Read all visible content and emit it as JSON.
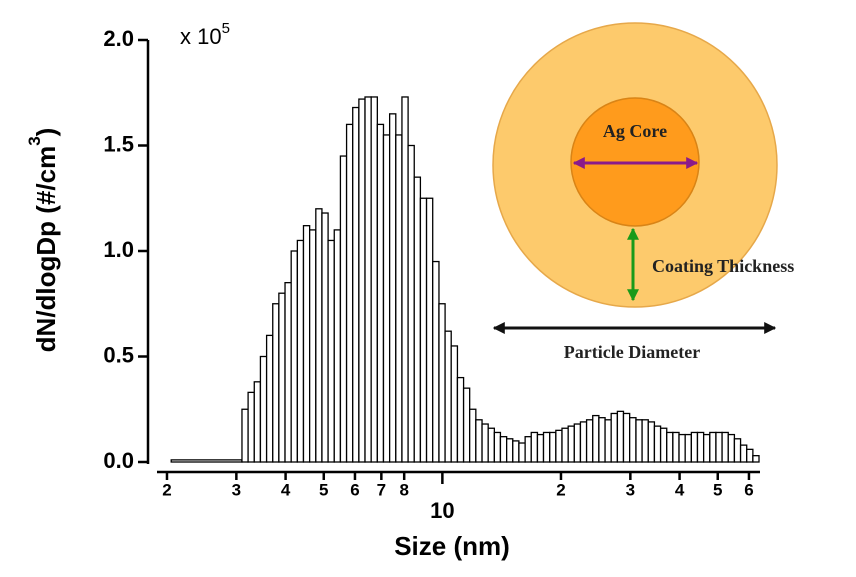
{
  "chart_data": {
    "type": "histogram",
    "xlabel": "Size (nm)",
    "ylabel": "dN/dlogDp (#/cm",
    "ylabel_superscript": "3",
    "ylabel_end": ")",
    "y_multiplier": "x 10",
    "y_multiplier_exponent": "5",
    "x_log_scale": true,
    "xlim": [
      1.79,
      64
    ],
    "xticks": [
      2,
      3,
      4,
      5,
      6,
      7,
      8,
      10,
      {
        "value": 20,
        "label": "2"
      },
      {
        "value": 30,
        "label": "3"
      },
      {
        "value": 40,
        "label": "4"
      },
      {
        "value": 50,
        "label": "5"
      },
      {
        "value": 60,
        "label": "6"
      }
    ],
    "ylim": [
      0,
      2
    ],
    "yticks": [
      {
        "value": 0,
        "label": "0.0"
      },
      0.5,
      {
        "value": 1,
        "label": "1.0"
      },
      1.5,
      {
        "value": 2,
        "label": "2.0"
      }
    ],
    "bar_fill": "#ffffff",
    "bar_edge": "#000000",
    "bins": [
      2.05,
      3.1,
      3.213,
      3.331,
      3.453,
      3.58,
      3.711,
      3.846,
      3.987,
      4.133,
      4.285,
      4.441,
      4.604,
      4.773,
      4.947,
      5.128,
      5.316,
      5.511,
      5.713,
      5.922,
      6.139,
      6.363,
      6.596,
      6.838,
      7.088,
      7.348,
      7.617,
      7.896,
      8.185,
      8.484,
      8.795,
      9.117,
      9.451,
      9.803,
      10.16,
      10.53,
      10.92,
      11.32,
      11.73,
      12.16,
      12.61,
      13.07,
      13.55,
      14.04,
      14.56,
      15.09,
      15.64,
      16.22,
      16.81,
      17.43,
      18.06,
      18.73,
      19.41,
      20.12,
      20.86,
      21.62,
      22.41,
      23.23,
      24.08,
      24.96,
      25.88,
      26.82,
      27.81,
      28.82,
      29.88,
      31.0,
      32.13,
      33.31,
      34.53,
      35.8,
      37.11,
      38.46,
      39.87,
      41.33,
      42.85,
      44.41,
      46.04,
      47.73,
      49.47,
      51.28,
      53.16,
      55.11,
      57.13,
      59.22,
      61.39,
      63.63
    ],
    "counts": [
      0.01,
      0.25,
      0.33,
      0.38,
      0.5,
      0.6,
      0.75,
      0.8,
      0.85,
      1.0,
      1.05,
      1.12,
      1.1,
      1.2,
      1.18,
      1.05,
      1.1,
      1.45,
      1.6,
      1.68,
      1.72,
      1.73,
      1.73,
      1.6,
      1.55,
      1.65,
      1.55,
      1.73,
      1.5,
      1.35,
      1.25,
      1.25,
      0.95,
      0.75,
      0.62,
      0.55,
      0.4,
      0.35,
      0.25,
      0.2,
      0.18,
      0.16,
      0.14,
      0.12,
      0.11,
      0.1,
      0.09,
      0.12,
      0.14,
      0.13,
      0.14,
      0.14,
      0.15,
      0.16,
      0.17,
      0.18,
      0.19,
      0.2,
      0.22,
      0.21,
      0.2,
      0.23,
      0.24,
      0.23,
      0.21,
      0.2,
      0.2,
      0.19,
      0.17,
      0.16,
      0.14,
      0.14,
      0.13,
      0.13,
      0.14,
      0.14,
      0.13,
      0.14,
      0.14,
      0.14,
      0.13,
      0.11,
      0.08,
      0.06,
      0.03
    ],
    "annotations": {
      "core": "Ag Core",
      "coating": "Coating Thickness",
      "diameter": "Particle Diameter"
    }
  }
}
